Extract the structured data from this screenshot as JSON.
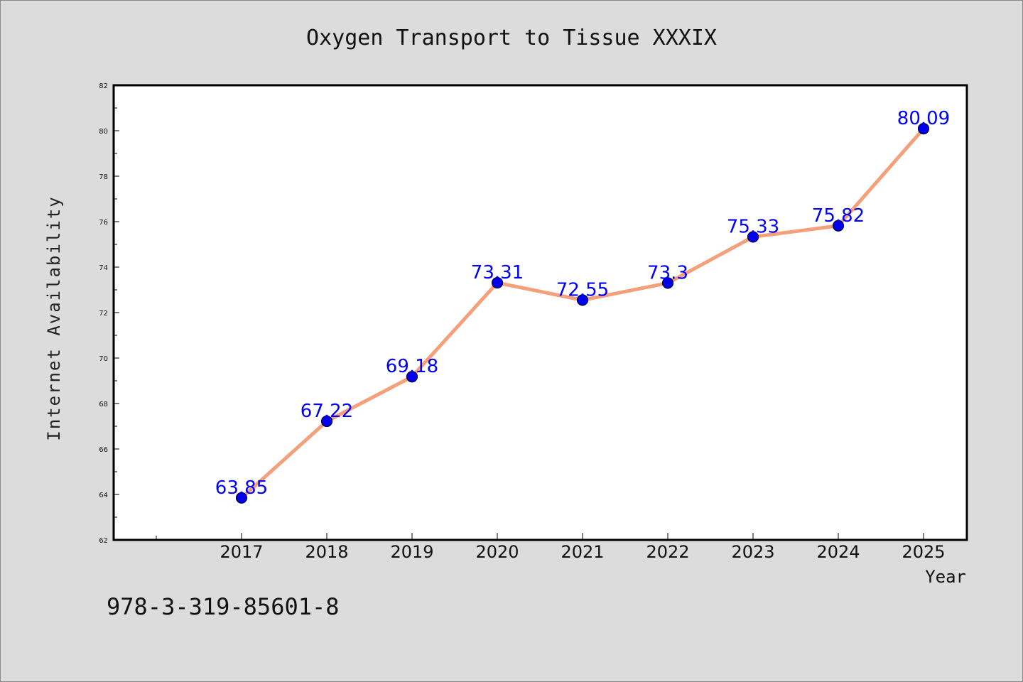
{
  "chart_data": {
    "type": "line",
    "title": "Oxygen Transport to Tissue XXXIX",
    "xlabel": "Year",
    "ylabel": "Internet Availability",
    "categories": [
      "2017",
      "2018",
      "2019",
      "2020",
      "2021",
      "2022",
      "2023",
      "2024",
      "2025"
    ],
    "series": [
      {
        "values": [
          63.85,
          67.22,
          69.18,
          73.31,
          72.55,
          73.3,
          75.33,
          75.82,
          80.09
        ],
        "data_labels": [
          "63.85",
          "67.22",
          "69.18",
          "73.31",
          "72.55",
          "73.3",
          "75.33",
          "75.82",
          "80.09"
        ]
      }
    ],
    "ylim": [
      62,
      82
    ],
    "yticks": [
      "62",
      "64",
      "66",
      "68",
      "70",
      "72",
      "74",
      "76",
      "78",
      "80",
      "82"
    ],
    "grid": false,
    "legend": "none",
    "colors": {
      "line": "#f4a07a",
      "marker": "#0000ee",
      "label": "#0000ff",
      "plot_bg": "#ffffff",
      "page_bg": "#dcdcdc"
    }
  },
  "footer": {
    "isbn": "978-3-319-85601-8"
  }
}
